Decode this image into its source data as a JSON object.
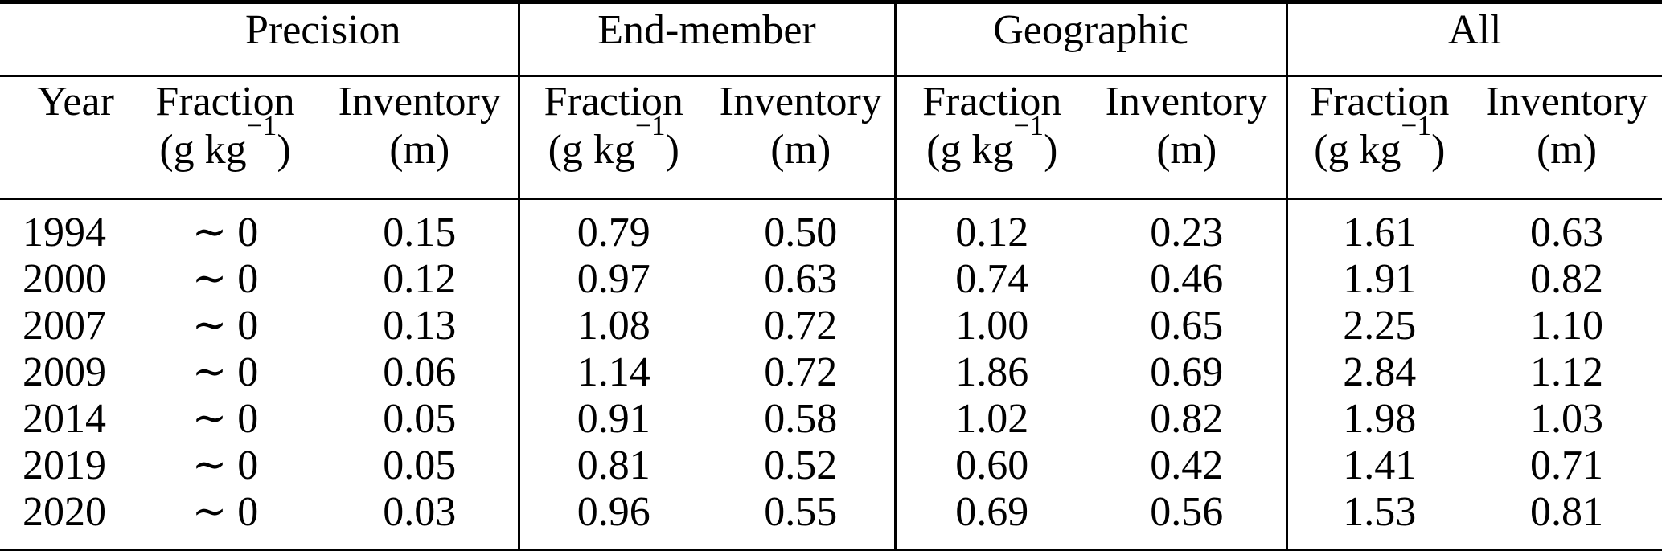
{
  "table": {
    "group_headers": [
      {
        "label": "Precision"
      },
      {
        "label": "End-member"
      },
      {
        "label": "Geographic"
      },
      {
        "label": "All"
      }
    ],
    "columns": {
      "year": "Year",
      "fraction": "Fraction",
      "inventory": "Inventory",
      "fraction_unit": {
        "prefix": "(g kg",
        "sup": "−1",
        "suffix": ")"
      },
      "inventory_unit": "(m)"
    },
    "rows": [
      [
        "1994",
        "∼ 0",
        "0.15",
        "0.79",
        "0.50",
        "0.12",
        "0.23",
        "1.61",
        "0.63"
      ],
      [
        "2000",
        "∼ 0",
        "0.12",
        "0.97",
        "0.63",
        "0.74",
        "0.46",
        "1.91",
        "0.82"
      ],
      [
        "2007",
        "∼ 0",
        "0.13",
        "1.08",
        "0.72",
        "1.00",
        "0.65",
        "2.25",
        "1.10"
      ],
      [
        "2009",
        "∼ 0",
        "0.06",
        "1.14",
        "0.72",
        "1.86",
        "0.69",
        "2.84",
        "1.12"
      ],
      [
        "2014",
        "∼ 0",
        "0.05",
        "0.91",
        "0.58",
        "1.02",
        "0.82",
        "1.98",
        "1.03"
      ],
      [
        "2019",
        "∼ 0",
        "0.05",
        "0.81",
        "0.52",
        "0.60",
        "0.42",
        "1.41",
        "0.71"
      ],
      [
        "2020",
        "∼ 0",
        "0.03",
        "0.96",
        "0.55",
        "0.69",
        "0.56",
        "1.53",
        "0.81"
      ]
    ],
    "colors": {
      "rule": "#000000",
      "text": "#000000",
      "background": "#ffffff"
    }
  }
}
